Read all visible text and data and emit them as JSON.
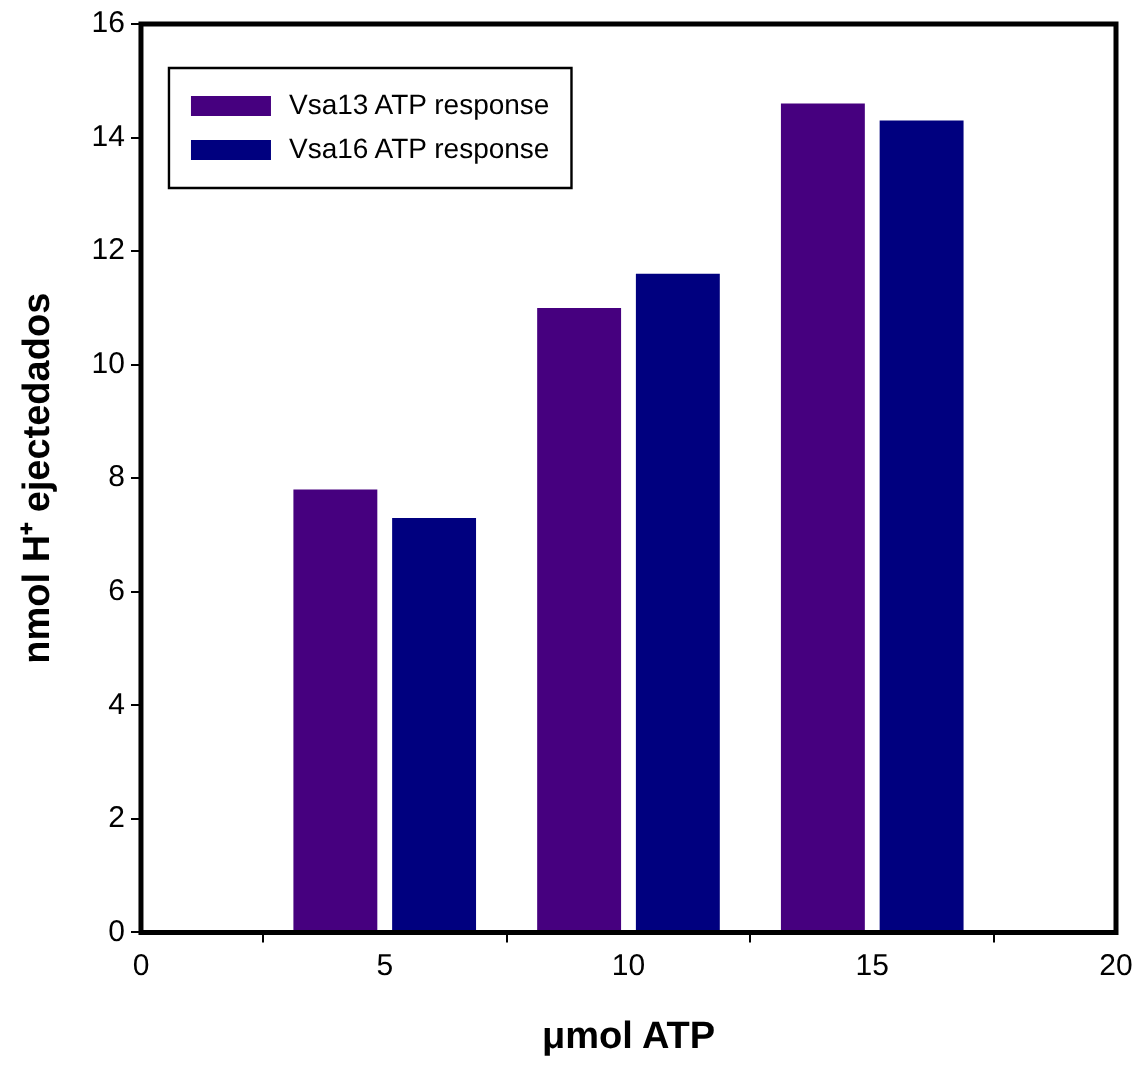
{
  "chart_data": {
    "type": "bar",
    "xlabel": "μmol ATP",
    "ylabel": "nmol H⁺ ejectedados",
    "x": [
      5,
      10,
      15
    ],
    "series": [
      {
        "name": "Vsa13 ATP response",
        "color": "#46007f",
        "values": [
          7.8,
          11.0,
          14.6
        ]
      },
      {
        "name": "Vsa16 ATP response",
        "color": "#00007f",
        "values": [
          7.3,
          11.6,
          14.3
        ]
      }
    ],
    "xlim": [
      0,
      20
    ],
    "xticks": [
      0,
      5,
      10,
      15,
      20
    ],
    "ylim": [
      0,
      16
    ],
    "yticks": [
      0,
      2,
      4,
      6,
      8,
      10,
      12,
      14,
      16
    ],
    "grid": false,
    "legend": "top left"
  }
}
